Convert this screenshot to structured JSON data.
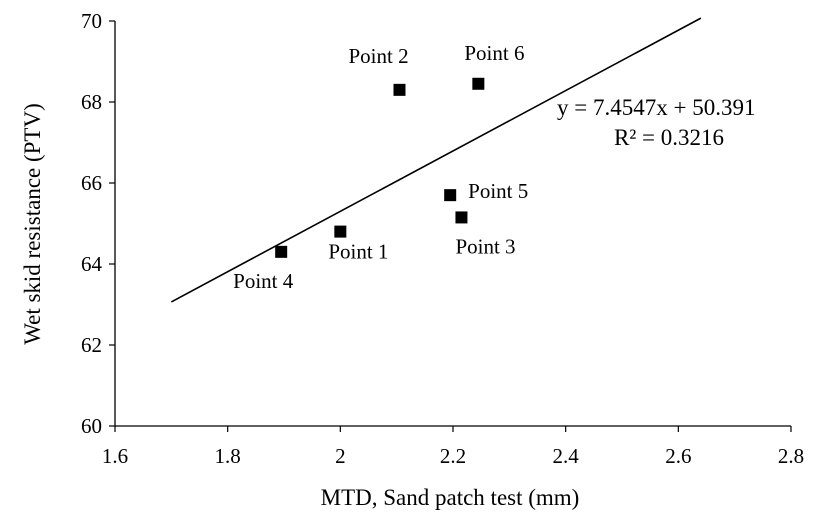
{
  "chart_data": {
    "type": "scatter",
    "xlabel": "MTD, Sand patch test (mm)",
    "ylabel": "Wet skid resistance (PTV)",
    "xlim": [
      1.6,
      2.8
    ],
    "ylim": [
      60,
      70
    ],
    "x_ticks": [
      "1.6",
      "1.8",
      "2",
      "2.2",
      "2.4",
      "2.6",
      "2.8"
    ],
    "y_ticks": [
      "60",
      "62",
      "64",
      "66",
      "68",
      "70"
    ],
    "grid": false,
    "marker": "square",
    "marker_color": "#000000",
    "points": [
      {
        "label": "Point 1",
        "x": 2.0,
        "y": 64.8
      },
      {
        "label": "Point 2",
        "x": 2.105,
        "y": 68.3
      },
      {
        "label": "Point 3",
        "x": 2.215,
        "y": 65.15
      },
      {
        "label": "Point 4",
        "x": 1.895,
        "y": 64.3
      },
      {
        "label": "Point 5",
        "x": 2.195,
        "y": 65.7
      },
      {
        "label": "Point 6",
        "x": 2.245,
        "y": 68.45
      }
    ],
    "trendline": {
      "type": "linear",
      "slope": 7.4547,
      "intercept": 50.391,
      "x_range": [
        1.7,
        2.64
      ],
      "equation_text": "y = 7.4547x + 50.391",
      "r2_text": "R² = 0.3216"
    }
  }
}
